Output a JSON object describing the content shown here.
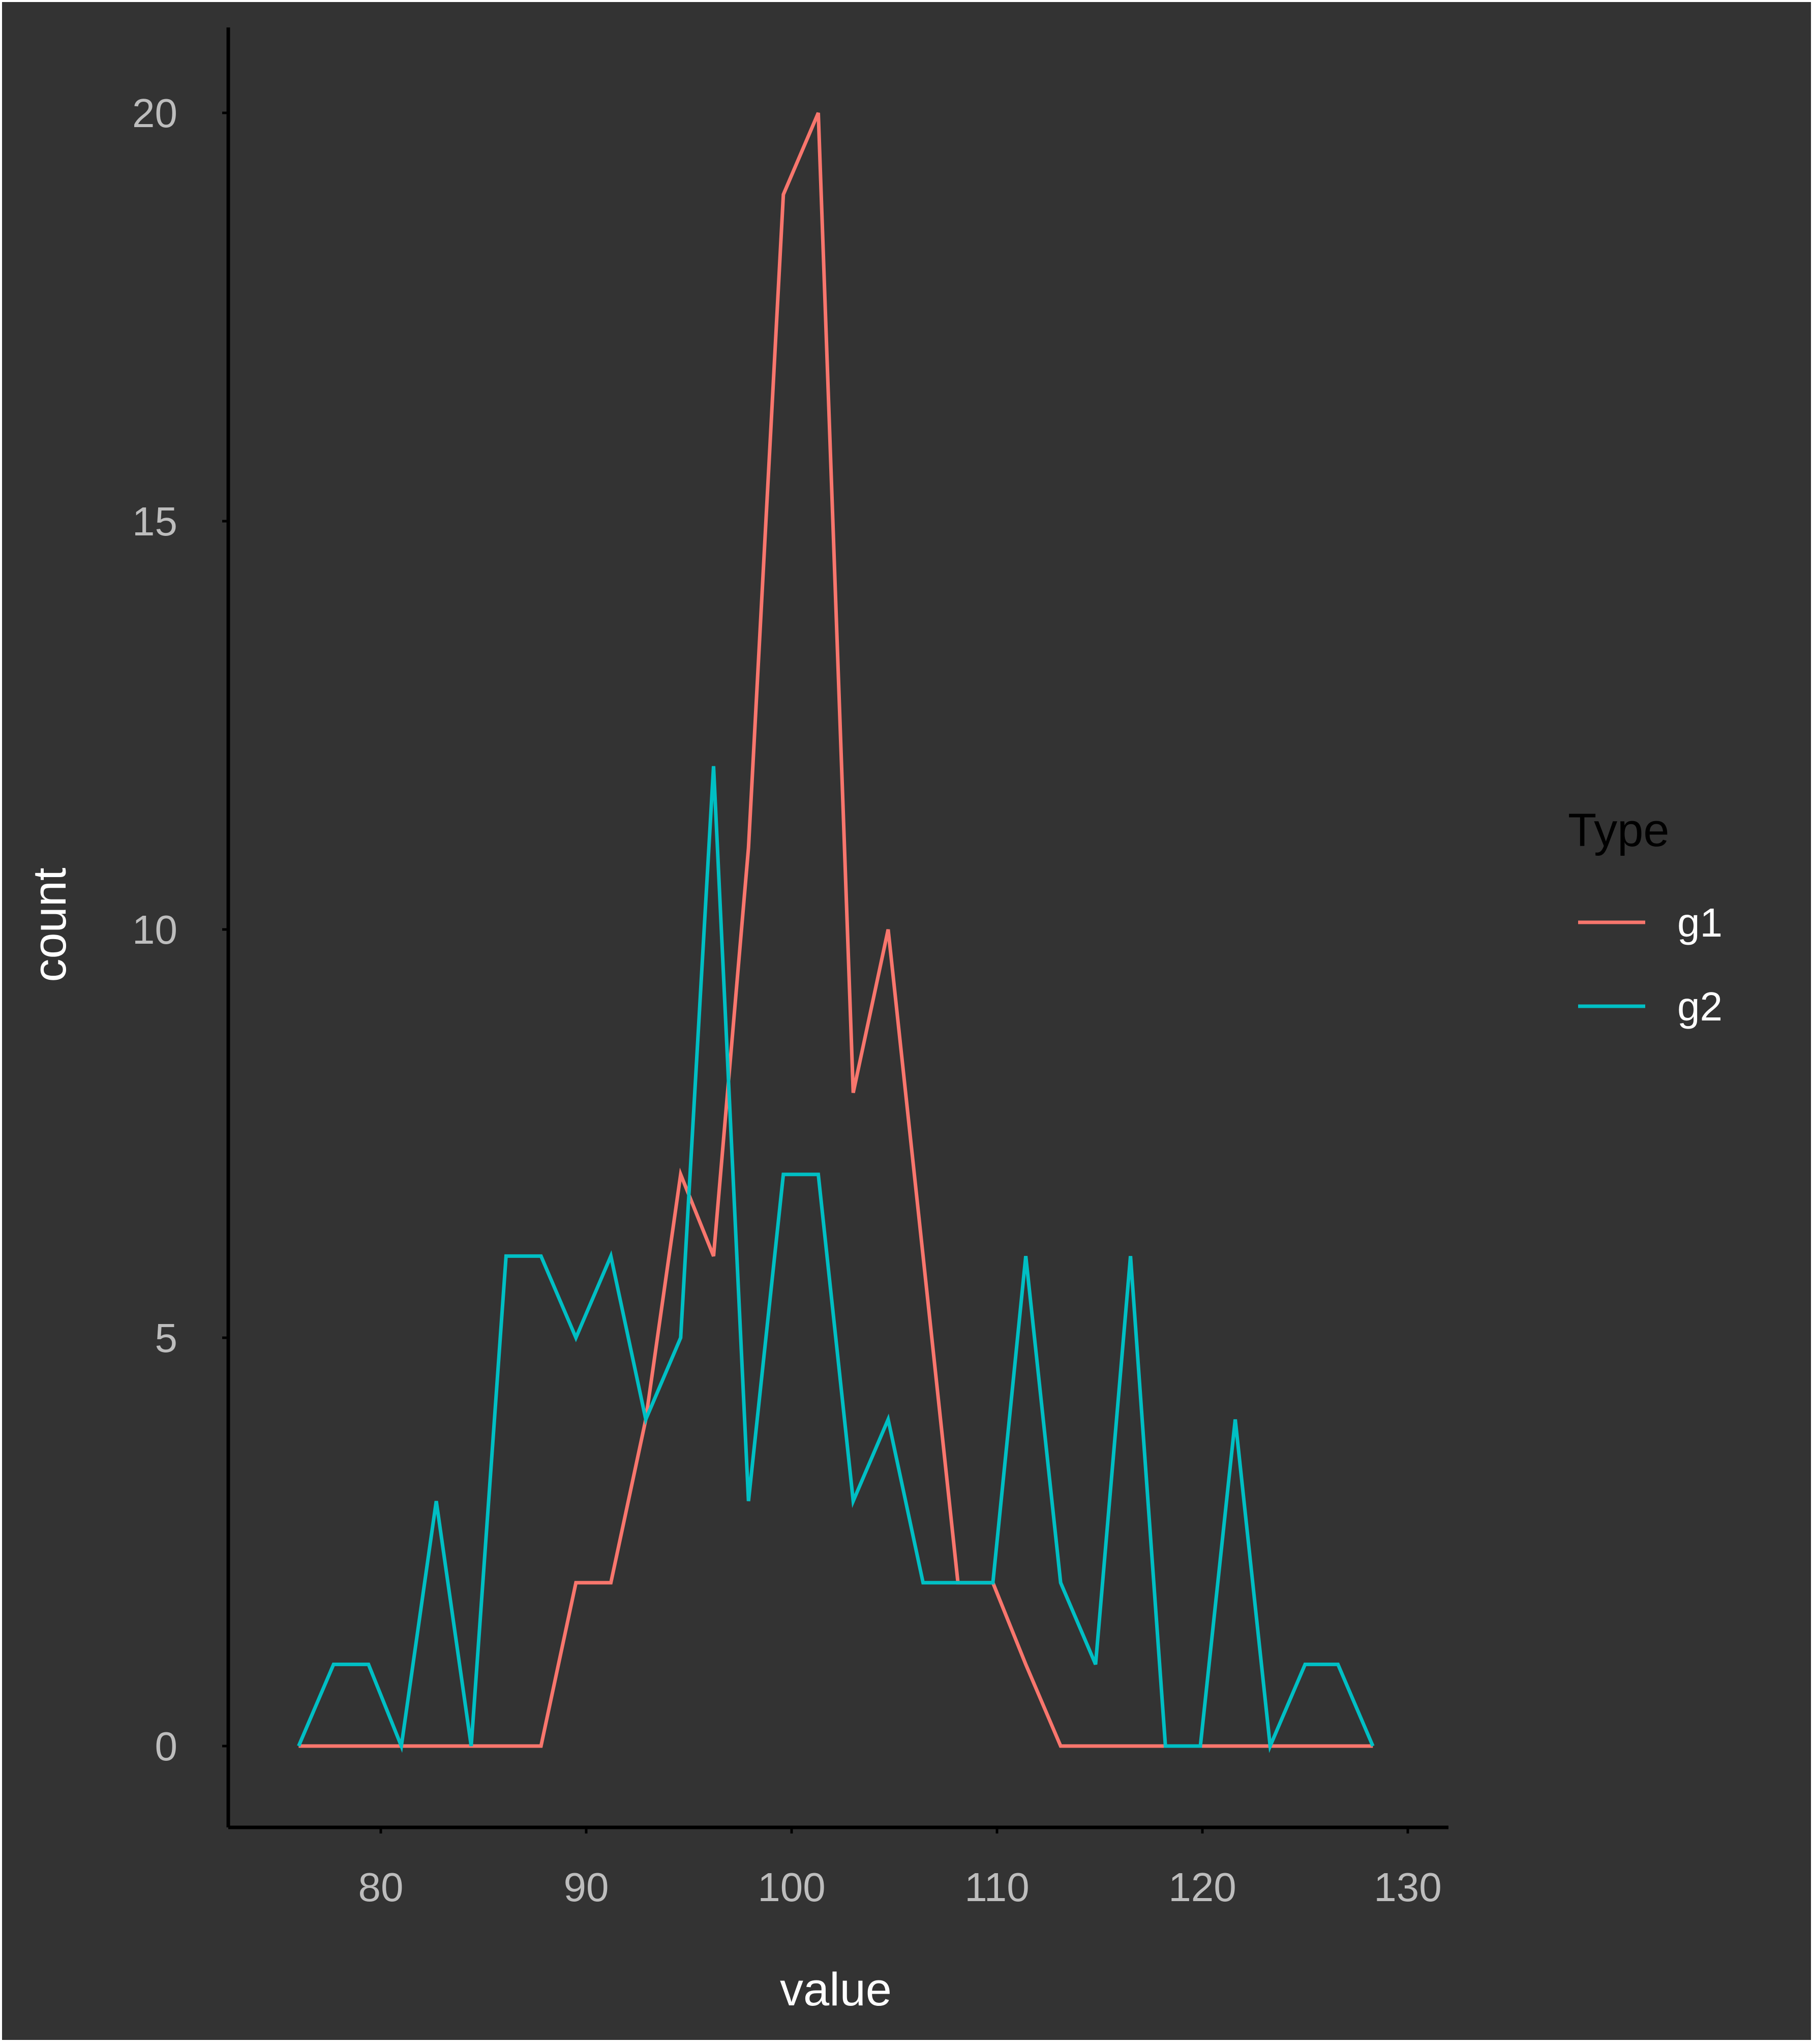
{
  "chart_data": {
    "type": "line",
    "title": "",
    "xlabel": "value",
    "ylabel": "count",
    "xlim": [
      72.5,
      131
    ],
    "ylim": [
      -1,
      21
    ],
    "xticks": [
      80,
      90,
      100,
      110,
      120,
      130
    ],
    "xtick_labels": [
      "80",
      "90",
      "100",
      "110",
      "120",
      "130"
    ],
    "yticks": [
      0,
      5,
      10,
      15,
      20
    ],
    "ytick_labels": [
      "0",
      "5",
      "10",
      "15",
      "20"
    ],
    "grid": false,
    "legend": {
      "title": "Type",
      "position": "right"
    },
    "x": [
      76.0,
      77.7,
      79.4,
      81.0,
      82.7,
      84.4,
      86.1,
      87.8,
      89.5,
      91.2,
      92.9,
      94.6,
      96.2,
      97.9,
      99.6,
      101.3,
      103.0,
      104.7,
      106.4,
      108.1,
      109.8,
      111.4,
      113.1,
      114.8,
      116.5,
      118.2,
      119.9,
      121.6,
      123.3,
      125.0,
      126.6,
      128.3
    ],
    "series": [
      {
        "name": "g1",
        "color": "#F8766D",
        "values": [
          0,
          0,
          0,
          0,
          0,
          0,
          0,
          0,
          2,
          2,
          4,
          7,
          6,
          11,
          19,
          20,
          8,
          10,
          6,
          2,
          2,
          1,
          0,
          0,
          0,
          0,
          0,
          0,
          0,
          0,
          0,
          0
        ]
      },
      {
        "name": "g2",
        "color": "#00BFC4",
        "values": [
          0,
          1,
          1,
          0,
          3,
          0,
          6,
          6,
          5,
          6,
          4,
          5,
          12,
          3,
          7,
          7,
          3,
          4,
          2,
          2,
          2,
          6,
          2,
          1,
          6,
          0,
          0,
          4,
          0,
          1,
          1,
          0
        ]
      }
    ]
  }
}
